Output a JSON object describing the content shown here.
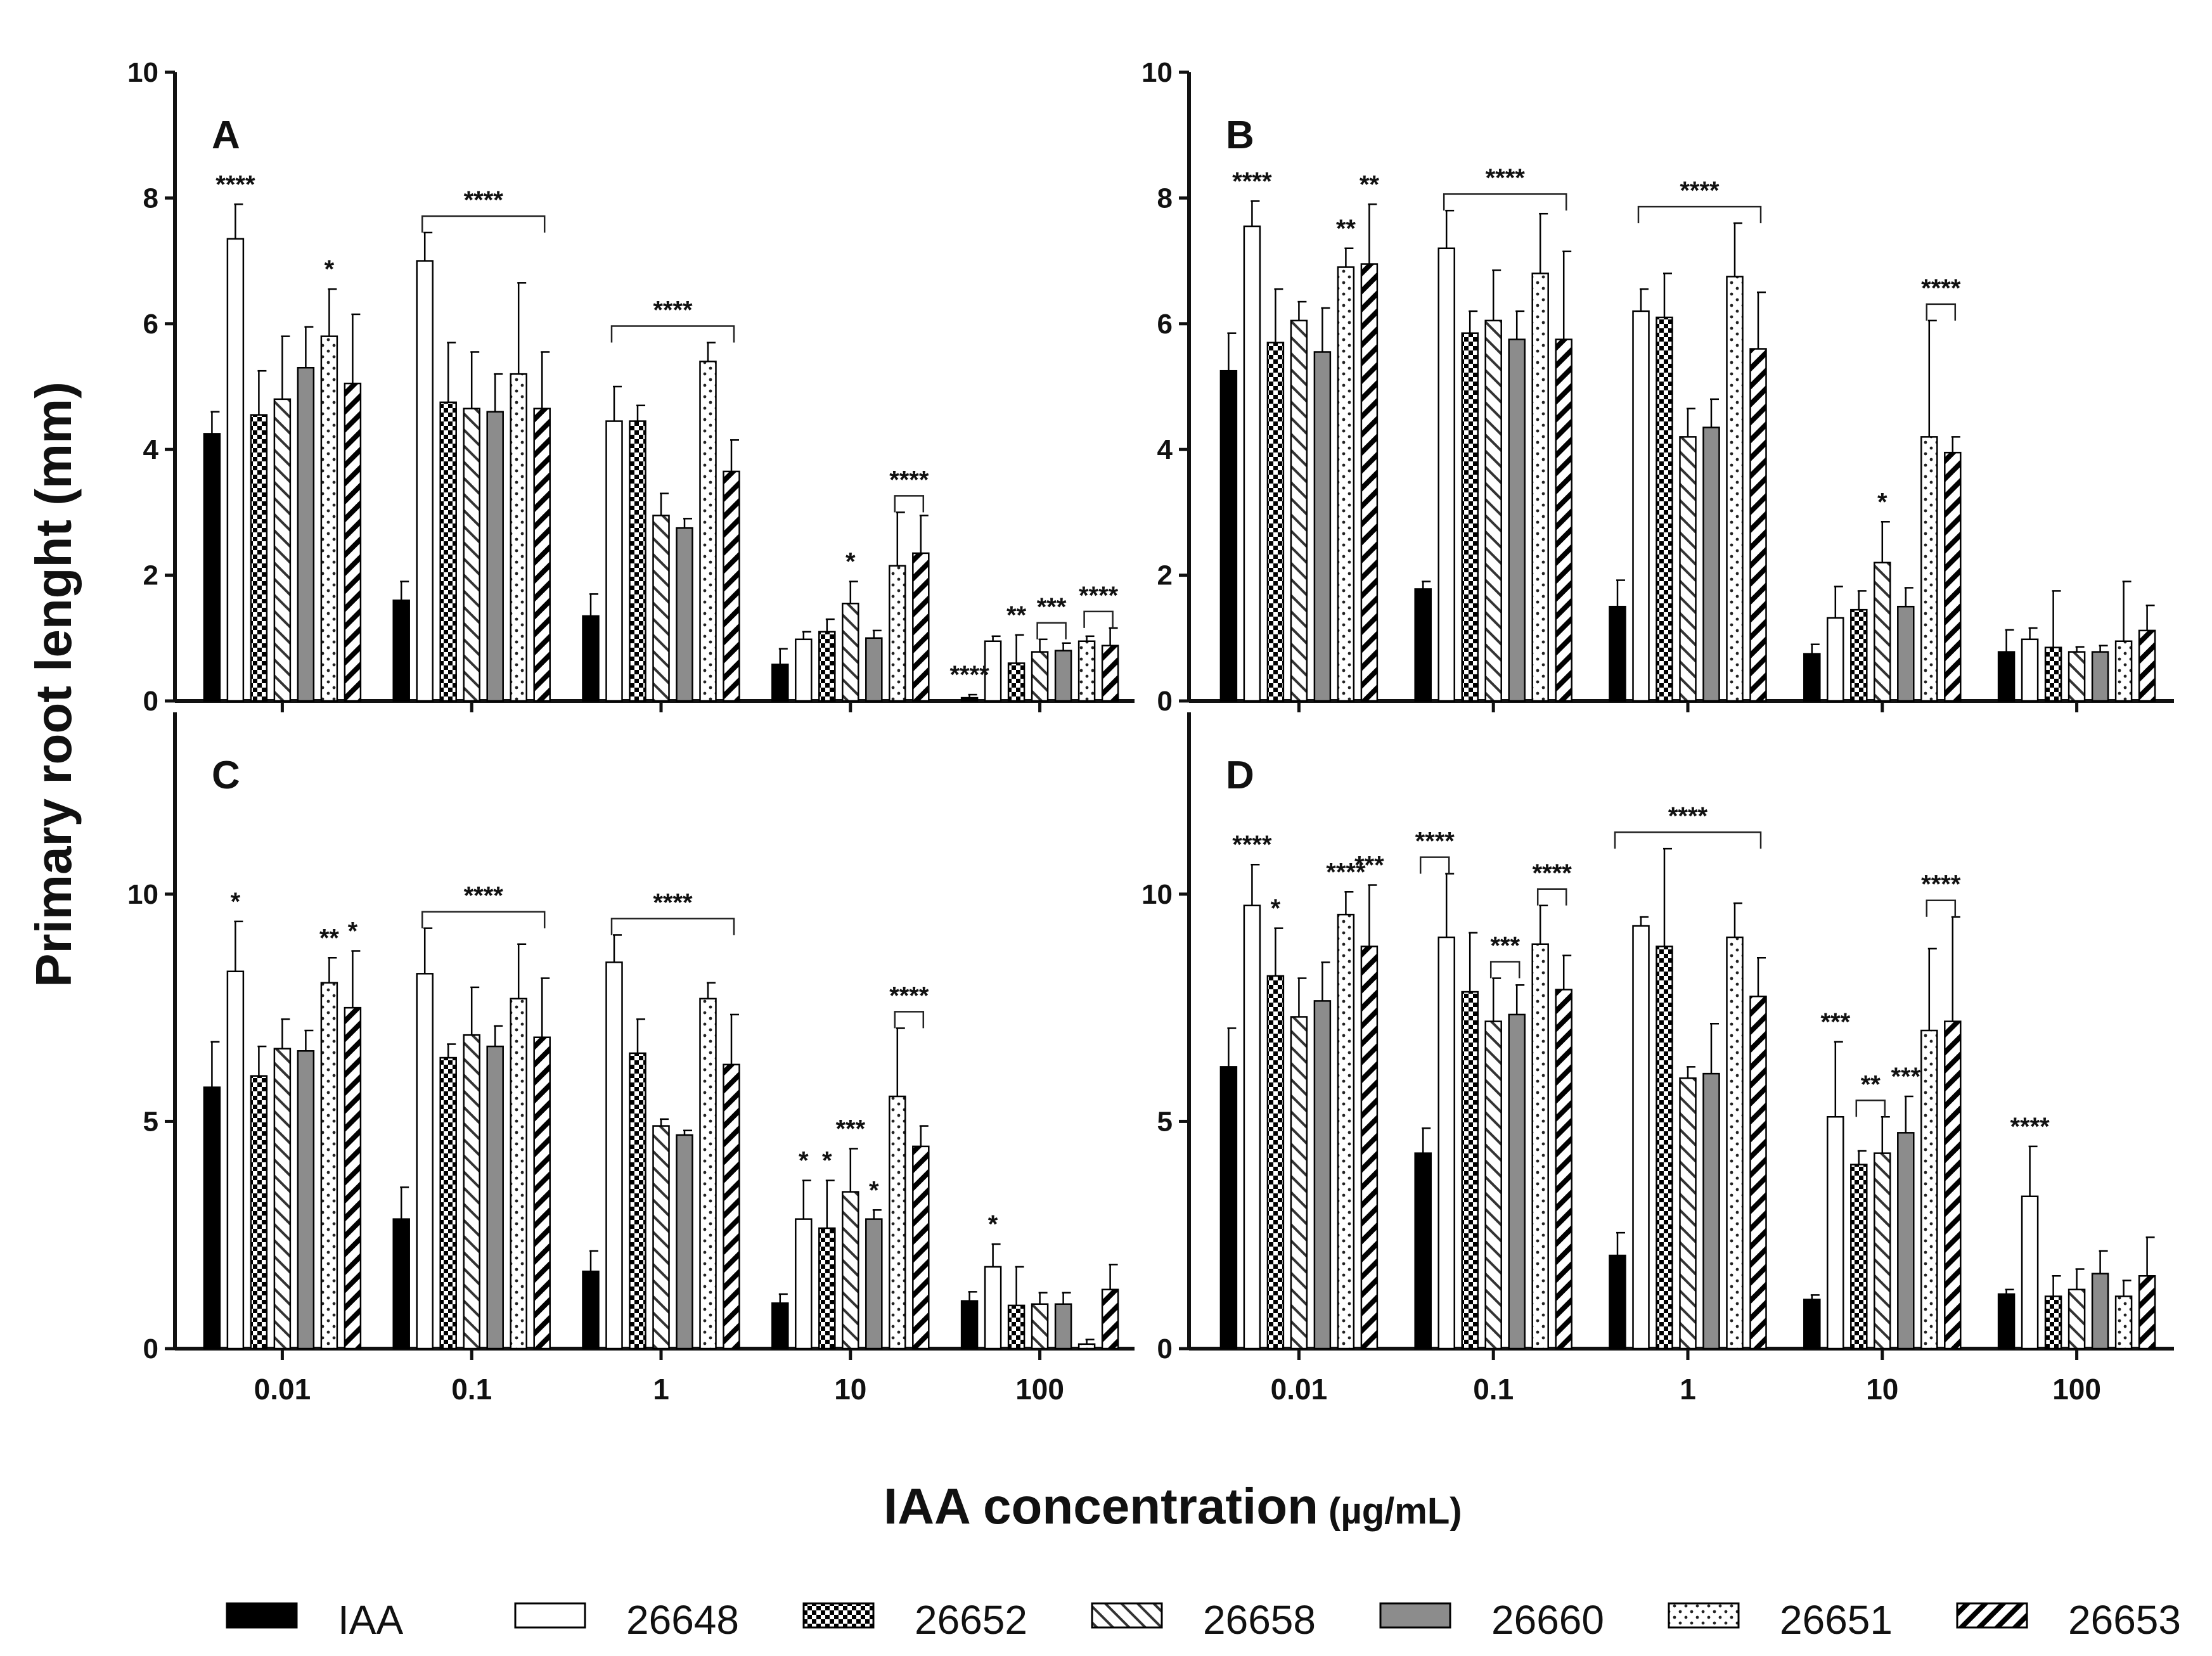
{
  "figure": {
    "y_axis_title": "Primary root lenght (mm)",
    "x_axis_title": "IAA concentration",
    "x_axis_unit": "(µg/mL)"
  },
  "legend": [
    {
      "name": "IAA",
      "pattern": "solid-black"
    },
    {
      "name": "26648",
      "pattern": "white"
    },
    {
      "name": "26652",
      "pattern": "checker"
    },
    {
      "name": "26658",
      "pattern": "diag-right"
    },
    {
      "name": "26660",
      "pattern": "solid-gray"
    },
    {
      "name": "26651",
      "pattern": "dots"
    },
    {
      "name": "26653",
      "pattern": "diag-left-thick"
    }
  ],
  "colors": {
    "bar_black": "#000000",
    "bar_gray": "#8c8c8c",
    "axis": "#111111"
  },
  "chart_data": [
    {
      "panel": "A",
      "type": "bar",
      "categories": [
        "0.01",
        "0.1",
        "1",
        "10",
        "100"
      ],
      "ylim": [
        0,
        10
      ],
      "yticks": [
        0,
        2,
        4,
        6,
        8,
        10
      ],
      "series": [
        {
          "name": "IAA",
          "values": [
            4.25,
            1.6,
            1.35,
            0.58,
            0.05
          ],
          "errors": [
            0.35,
            0.3,
            0.35,
            0.25,
            0.05
          ]
        },
        {
          "name": "26648",
          "values": [
            7.35,
            7.0,
            4.45,
            0.98,
            0.95
          ],
          "errors": [
            0.55,
            0.45,
            0.55,
            0.12,
            0.08
          ]
        },
        {
          "name": "26652",
          "values": [
            4.55,
            4.75,
            4.45,
            1.1,
            0.6
          ],
          "errors": [
            0.7,
            0.95,
            0.25,
            0.2,
            0.45
          ]
        },
        {
          "name": "26658",
          "values": [
            4.8,
            4.65,
            2.95,
            1.55,
            0.78
          ],
          "errors": [
            1.0,
            0.9,
            0.35,
            0.35,
            0.2
          ]
        },
        {
          "name": "26660",
          "values": [
            5.3,
            4.6,
            2.75,
            1.0,
            0.8
          ],
          "errors": [
            0.65,
            0.6,
            0.15,
            0.12,
            0.12
          ]
        },
        {
          "name": "26651",
          "values": [
            5.8,
            5.2,
            5.4,
            2.15,
            0.95
          ],
          "errors": [
            0.75,
            1.45,
            0.3,
            0.85,
            0.08
          ]
        },
        {
          "name": "26653",
          "values": [
            5.05,
            4.65,
            3.65,
            2.35,
            0.88
          ],
          "errors": [
            1.1,
            0.9,
            0.5,
            0.6,
            0.28
          ]
        }
      ],
      "annotations": [
        {
          "text": "****",
          "cat": 0,
          "from": 1,
          "to": 1
        },
        {
          "text": "*",
          "cat": 0,
          "from": 5,
          "to": 5
        },
        {
          "text": "****",
          "cat": 1,
          "from": 1,
          "to": 6,
          "bracket": true
        },
        {
          "text": "****",
          "cat": 2,
          "from": 1,
          "to": 6,
          "bracket": true
        },
        {
          "text": "*",
          "cat": 3,
          "from": 3,
          "to": 3
        },
        {
          "text": "****",
          "cat": 3,
          "from": 5,
          "to": 6,
          "bracket": true
        },
        {
          "text": "****",
          "cat": 4,
          "from": 0,
          "to": 0
        },
        {
          "text": "**",
          "cat": 4,
          "from": 2,
          "to": 2
        },
        {
          "text": "***",
          "cat": 4,
          "from": 3,
          "to": 4,
          "bracket": true
        },
        {
          "text": "****",
          "cat": 4,
          "from": 5,
          "to": 6,
          "bracket": true
        }
      ]
    },
    {
      "panel": "B",
      "type": "bar",
      "categories": [
        "0.01",
        "0.1",
        "1",
        "10",
        "100"
      ],
      "ylim": [
        0,
        10
      ],
      "yticks": [
        0,
        2,
        4,
        6,
        8,
        10
      ],
      "series": [
        {
          "name": "IAA",
          "values": [
            5.25,
            1.78,
            1.5,
            0.75,
            0.78
          ],
          "errors": [
            0.6,
            0.12,
            0.42,
            0.15,
            0.35
          ]
        },
        {
          "name": "26648",
          "values": [
            7.55,
            7.2,
            6.2,
            1.32,
            0.98
          ],
          "errors": [
            0.4,
            0.6,
            0.35,
            0.5,
            0.18
          ]
        },
        {
          "name": "26652",
          "values": [
            5.7,
            5.85,
            6.1,
            1.45,
            0.85
          ],
          "errors": [
            0.85,
            0.35,
            0.7,
            0.3,
            0.9
          ]
        },
        {
          "name": "26658",
          "values": [
            6.05,
            6.05,
            4.2,
            2.2,
            0.78
          ],
          "errors": [
            0.3,
            0.8,
            0.45,
            0.65,
            0.08
          ]
        },
        {
          "name": "26660",
          "values": [
            5.55,
            5.75,
            4.35,
            1.5,
            0.78
          ],
          "errors": [
            0.7,
            0.45,
            0.45,
            0.3,
            0.1
          ]
        },
        {
          "name": "26651",
          "values": [
            6.9,
            6.8,
            6.75,
            4.2,
            0.95
          ],
          "errors": [
            0.3,
            0.95,
            0.85,
            1.85,
            0.95
          ]
        },
        {
          "name": "26653",
          "values": [
            6.95,
            5.75,
            5.6,
            3.95,
            1.12
          ],
          "errors": [
            0.95,
            1.4,
            0.9,
            0.25,
            0.4
          ]
        }
      ],
      "annotations": [
        {
          "text": "****",
          "cat": 0,
          "from": 1,
          "to": 1
        },
        {
          "text": "**",
          "cat": 0,
          "from": 5,
          "to": 5
        },
        {
          "text": "**",
          "cat": 0,
          "from": 6,
          "to": 6
        },
        {
          "text": "****",
          "cat": 1,
          "from": 1,
          "to": 6,
          "bracket": true
        },
        {
          "text": "****",
          "cat": 2,
          "from": 1,
          "to": 6,
          "bracket": true
        },
        {
          "text": "*",
          "cat": 3,
          "from": 3,
          "to": 3
        },
        {
          "text": "****",
          "cat": 3,
          "from": 5,
          "to": 6,
          "bracket": true
        }
      ]
    },
    {
      "panel": "C",
      "type": "bar",
      "categories": [
        "0.01",
        "0.1",
        "1",
        "10",
        "100"
      ],
      "ylim": [
        0,
        14
      ],
      "yticks": [
        0,
        5,
        10
      ],
      "series": [
        {
          "name": "IAA",
          "values": [
            5.75,
            2.85,
            1.7,
            1.0,
            1.05
          ],
          "errors": [
            1.0,
            0.7,
            0.45,
            0.2,
            0.2
          ]
        },
        {
          "name": "26648",
          "values": [
            8.3,
            8.25,
            8.5,
            2.85,
            1.8
          ],
          "errors": [
            1.1,
            1.0,
            0.6,
            0.85,
            0.5
          ]
        },
        {
          "name": "26652",
          "values": [
            6.0,
            6.4,
            6.5,
            2.65,
            0.95
          ],
          "errors": [
            0.65,
            0.3,
            0.75,
            1.05,
            0.85
          ]
        },
        {
          "name": "26658",
          "values": [
            6.6,
            6.9,
            4.9,
            3.45,
            0.98
          ],
          "errors": [
            0.65,
            1.05,
            0.15,
            0.95,
            0.25
          ]
        },
        {
          "name": "26660",
          "values": [
            6.55,
            6.65,
            4.7,
            2.85,
            0.98
          ],
          "errors": [
            0.45,
            0.45,
            0.1,
            0.2,
            0.25
          ]
        },
        {
          "name": "26651",
          "values": [
            8.05,
            7.7,
            7.7,
            5.55,
            0.1
          ],
          "errors": [
            0.55,
            1.2,
            0.35,
            1.5,
            0.1
          ]
        },
        {
          "name": "26653",
          "values": [
            7.5,
            6.85,
            6.25,
            4.45,
            1.3
          ],
          "errors": [
            1.25,
            1.3,
            1.1,
            0.45,
            0.55
          ]
        }
      ],
      "annotations": [
        {
          "text": "*",
          "cat": 0,
          "from": 1,
          "to": 1
        },
        {
          "text": "**",
          "cat": 0,
          "from": 5,
          "to": 5
        },
        {
          "text": "*",
          "cat": 0,
          "from": 6,
          "to": 6
        },
        {
          "text": "****",
          "cat": 1,
          "from": 1,
          "to": 6,
          "bracket": true
        },
        {
          "text": "****",
          "cat": 2,
          "from": 1,
          "to": 6,
          "bracket": true
        },
        {
          "text": "*",
          "cat": 3,
          "from": 1,
          "to": 1
        },
        {
          "text": "*",
          "cat": 3,
          "from": 2,
          "to": 2
        },
        {
          "text": "***",
          "cat": 3,
          "from": 3,
          "to": 3
        },
        {
          "text": "*",
          "cat": 3,
          "from": 4,
          "to": 4
        },
        {
          "text": "****",
          "cat": 3,
          "from": 5,
          "to": 6,
          "bracket": true
        },
        {
          "text": "*",
          "cat": 4,
          "from": 1,
          "to": 1
        }
      ]
    },
    {
      "panel": "D",
      "type": "bar",
      "categories": [
        "0.01",
        "0.1",
        "1",
        "10",
        "100"
      ],
      "ylim": [
        0,
        14
      ],
      "yticks": [
        0,
        5,
        10
      ],
      "series": [
        {
          "name": "IAA",
          "values": [
            6.2,
            4.3,
            2.05,
            1.08,
            1.2
          ],
          "errors": [
            0.85,
            0.55,
            0.5,
            0.1,
            0.1
          ]
        },
        {
          "name": "26648",
          "values": [
            9.75,
            9.05,
            9.3,
            5.1,
            3.35
          ],
          "errors": [
            0.9,
            1.4,
            0.2,
            1.65,
            1.1
          ]
        },
        {
          "name": "26652",
          "values": [
            8.2,
            7.85,
            8.85,
            4.05,
            1.15
          ],
          "errors": [
            1.05,
            1.3,
            2.15,
            0.3,
            0.45
          ]
        },
        {
          "name": "26658",
          "values": [
            7.3,
            7.2,
            5.95,
            4.3,
            1.3
          ],
          "errors": [
            0.85,
            0.95,
            0.25,
            0.8,
            0.45
          ]
        },
        {
          "name": "26660",
          "values": [
            7.65,
            7.35,
            6.05,
            4.75,
            1.65
          ],
          "errors": [
            0.85,
            0.65,
            1.1,
            0.8,
            0.5
          ]
        },
        {
          "name": "26651",
          "values": [
            9.55,
            8.9,
            9.05,
            7.0,
            1.15
          ],
          "errors": [
            0.5,
            0.85,
            0.75,
            1.8,
            0.35
          ]
        },
        {
          "name": "26653",
          "values": [
            8.85,
            7.9,
            7.75,
            7.2,
            1.6
          ],
          "errors": [
            1.35,
            0.75,
            0.85,
            2.3,
            0.85
          ]
        }
      ],
      "annotations": [
        {
          "text": "****",
          "cat": 0,
          "from": 1,
          "to": 1
        },
        {
          "text": "*",
          "cat": 0,
          "from": 2,
          "to": 2
        },
        {
          "text": "****",
          "cat": 0,
          "from": 5,
          "to": 5
        },
        {
          "text": "***",
          "cat": 0,
          "from": 6,
          "to": 6
        },
        {
          "text": "****",
          "cat": 1,
          "from": 0,
          "to": 1,
          "bracket": true
        },
        {
          "text": "***",
          "cat": 1,
          "from": 3,
          "to": 4,
          "bracket": true
        },
        {
          "text": "****",
          "cat": 1,
          "from": 5,
          "to": 6,
          "bracket": true
        },
        {
          "text": "****",
          "cat": 2,
          "from": 0,
          "to": 6,
          "bracket": true
        },
        {
          "text": "***",
          "cat": 3,
          "from": 1,
          "to": 1
        },
        {
          "text": "**",
          "cat": 3,
          "from": 2,
          "to": 3,
          "bracket": true
        },
        {
          "text": "***",
          "cat": 3,
          "from": 4,
          "to": 4
        },
        {
          "text": "****",
          "cat": 3,
          "from": 5,
          "to": 6,
          "bracket": true
        },
        {
          "text": "****",
          "cat": 4,
          "from": 1,
          "to": 1
        }
      ]
    }
  ]
}
